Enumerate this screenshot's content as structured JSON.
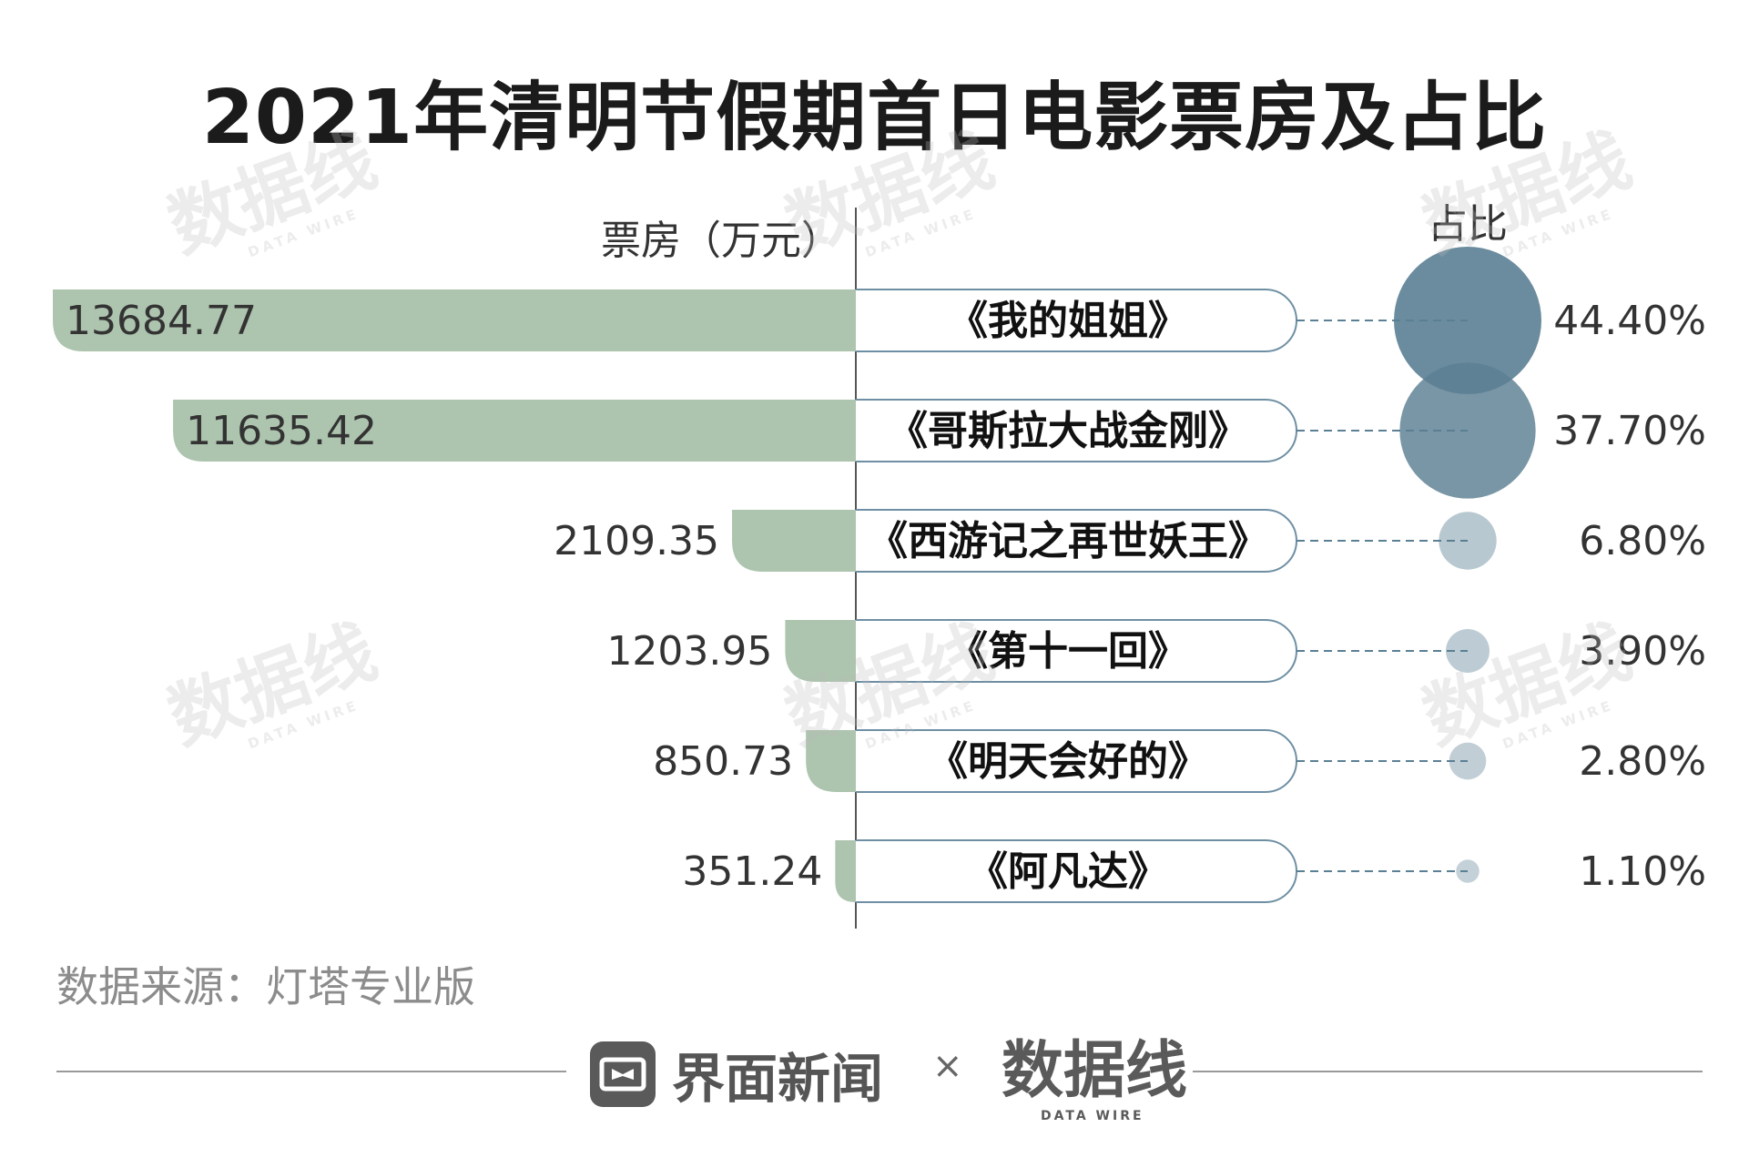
{
  "title": "2021年清明节假期首日电影票房及占比",
  "source": "数据来源：灯塔专业版",
  "brand": {
    "jiemian": "界面新闻",
    "times": "×",
    "datawire": "数据线",
    "datawire_sub": "DATA WIRE"
  },
  "watermark": {
    "text": "数据线",
    "sub": "DATA WIRE"
  },
  "colors": {
    "bar": "#adc4ae",
    "bubble": "#5b7f93",
    "pill_border": "#6e8fa3",
    "axis": "#555555",
    "dash": "#5b7f93"
  },
  "chart_data": {
    "type": "bar",
    "ylabel": "票房（万元）",
    "share_label": "占比",
    "categories": [
      "《我的姐姐》",
      "《哥斯拉大战金刚》",
      "《西游记之再世妖王》",
      "《第十一回》",
      "《明天会好的》",
      "《阿凡达》"
    ],
    "series": [
      {
        "name": "票房（万元）",
        "values": [
          13684.77,
          11635.42,
          2109.35,
          1203.95,
          850.73,
          351.24
        ],
        "labels": [
          "13684.77",
          "11635.42",
          "2109.35",
          "1203.95",
          "850.73",
          "351.24"
        ]
      },
      {
        "name": "占比",
        "values": [
          44.4,
          37.7,
          6.8,
          3.9,
          2.8,
          1.1
        ],
        "labels": [
          "44.40%",
          "37.70%",
          "6.80%",
          "3.90%",
          "2.80%",
          "1.10%"
        ]
      }
    ]
  }
}
